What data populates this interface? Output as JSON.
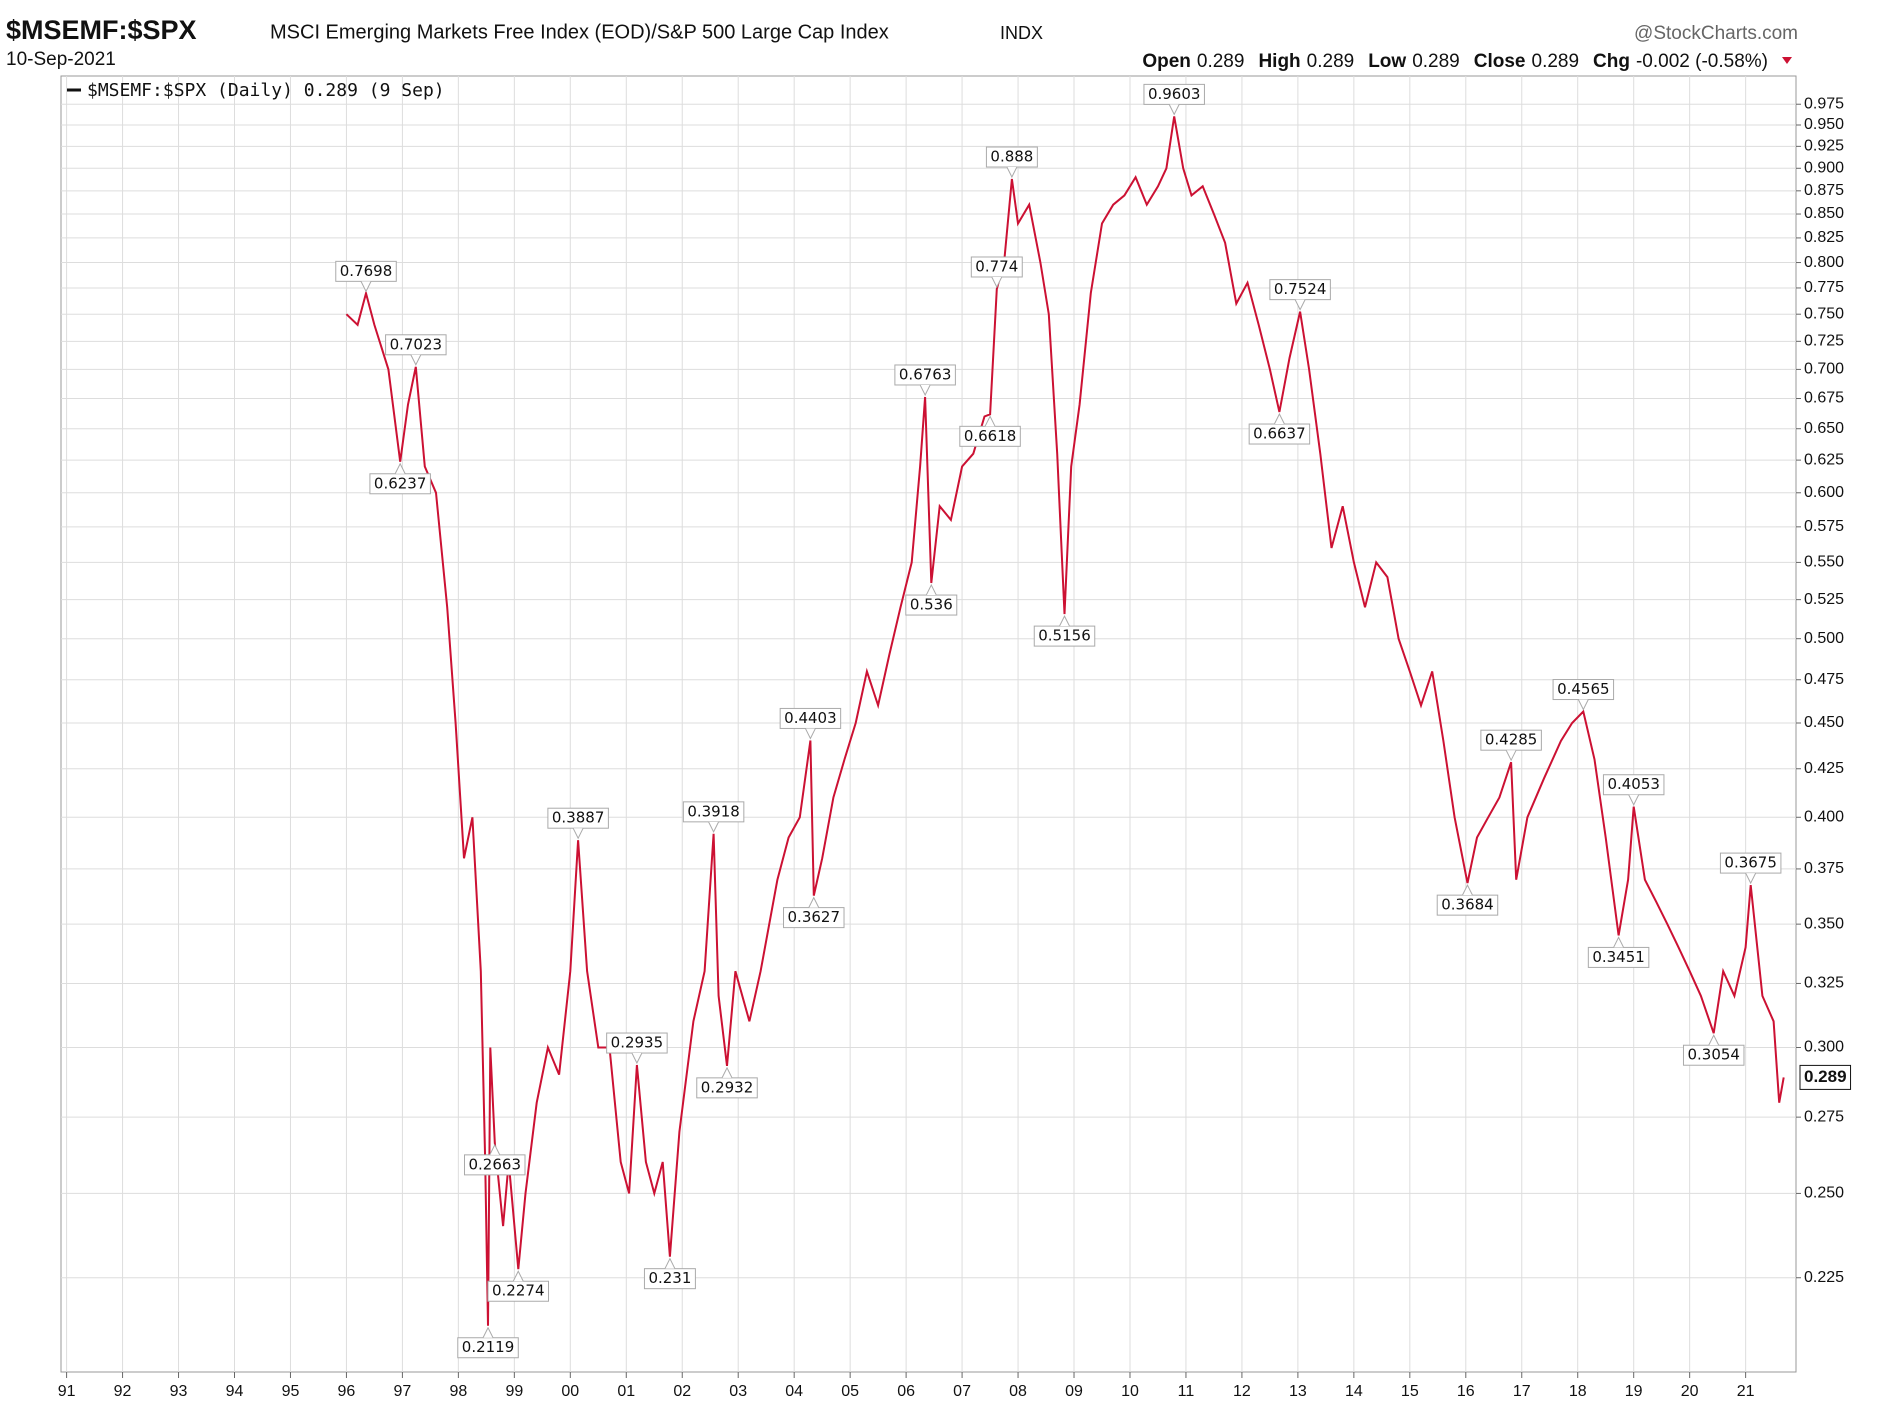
{
  "chart_data": {
    "type": "line",
    "symbol": "$MSEMF:$SPX",
    "title": "MSCI Emerging Markets Free Index (EOD)/S&P 500 Large Cap Index",
    "exchange": "INDX",
    "date": "10-Sep-2021",
    "source": "@StockCharts.com",
    "quote": [
      {
        "label": "Open",
        "value": 0.289
      },
      {
        "label": "High",
        "value": 0.289
      },
      {
        "label": "Low",
        "value": 0.289
      },
      {
        "label": "Close",
        "value": 0.289
      }
    ],
    "change_label": "Chg",
    "change": "-0.002 (-0.58%)",
    "legend": "$MSEMF:$SPX (Daily) 0.289 (9 Sep)",
    "log_scale": true,
    "grid": true,
    "xlim": [
      1990.9,
      2021.9
    ],
    "ylim": [
      0.2,
      1.01
    ],
    "xticks": [
      {
        "value": 1991,
        "label": "91"
      },
      {
        "value": 1992,
        "label": "92"
      },
      {
        "value": 1993,
        "label": "93"
      },
      {
        "value": 1994,
        "label": "94"
      },
      {
        "value": 1995,
        "label": "95"
      },
      {
        "value": 1996,
        "label": "96"
      },
      {
        "value": 1997,
        "label": "97"
      },
      {
        "value": 1998,
        "label": "98"
      },
      {
        "value": 1999,
        "label": "99"
      },
      {
        "value": 2000,
        "label": "00"
      },
      {
        "value": 2001,
        "label": "01"
      },
      {
        "value": 2002,
        "label": "02"
      },
      {
        "value": 2003,
        "label": "03"
      },
      {
        "value": 2004,
        "label": "04"
      },
      {
        "value": 2005,
        "label": "05"
      },
      {
        "value": 2006,
        "label": "06"
      },
      {
        "value": 2007,
        "label": "07"
      },
      {
        "value": 2008,
        "label": "08"
      },
      {
        "value": 2009,
        "label": "09"
      },
      {
        "value": 2010,
        "label": "10"
      },
      {
        "value": 2011,
        "label": "11"
      },
      {
        "value": 2012,
        "label": "12"
      },
      {
        "value": 2013,
        "label": "13"
      },
      {
        "value": 2014,
        "label": "14"
      },
      {
        "value": 2015,
        "label": "15"
      },
      {
        "value": 2016,
        "label": "16"
      },
      {
        "value": 2017,
        "label": "17"
      },
      {
        "value": 2018,
        "label": "18"
      },
      {
        "value": 2019,
        "label": "19"
      },
      {
        "value": 2020,
        "label": "20"
      },
      {
        "value": 2021,
        "label": "21"
      }
    ],
    "yticks": [
      0.225,
      {
        "value": 0.25,
        "label": "0.250"
      },
      0.275,
      {
        "value": 0.3,
        "label": "0.300"
      },
      0.325,
      {
        "value": 0.35,
        "label": "0.350"
      },
      0.375,
      {
        "value": 0.4,
        "label": "0.400"
      },
      0.425,
      {
        "value": 0.45,
        "label": "0.450"
      },
      0.475,
      {
        "value": 0.5,
        "label": "0.500"
      },
      0.525,
      {
        "value": 0.55,
        "label": "0.550"
      },
      0.575,
      {
        "value": 0.6,
        "label": "0.600"
      },
      0.625,
      {
        "value": 0.65,
        "label": "0.650"
      },
      0.675,
      {
        "value": 0.7,
        "label": "0.700"
      },
      0.725,
      {
        "value": 0.75,
        "label": "0.750"
      },
      0.775,
      {
        "value": 0.8,
        "label": "0.800"
      },
      0.825,
      {
        "value": 0.85,
        "label": "0.850"
      },
      0.875,
      {
        "value": 0.9,
        "label": "0.900"
      },
      0.925,
      {
        "value": 0.95,
        "label": "0.950"
      },
      0.975
    ],
    "x": [
      1996.0,
      1996.2,
      1996.35,
      1996.5,
      1996.75,
      1996.96,
      1997.1,
      1997.24,
      1997.4,
      1997.6,
      1997.8,
      1997.95,
      1998.1,
      1998.25,
      1998.4,
      1998.48,
      1998.53,
      1998.57,
      1998.65,
      1998.8,
      1998.9,
      1999.07,
      1999.2,
      1999.4,
      1999.6,
      1999.8,
      2000.0,
      2000.14,
      2000.3,
      2000.5,
      2000.7,
      2000.9,
      2001.05,
      2001.19,
      2001.35,
      2001.5,
      2001.65,
      2001.78,
      2001.95,
      2002.2,
      2002.4,
      2002.56,
      2002.65,
      2002.8,
      2002.95,
      2003.2,
      2003.4,
      2003.7,
      2003.9,
      2004.1,
      2004.29,
      2004.35,
      2004.5,
      2004.7,
      2004.9,
      2005.1,
      2005.3,
      2005.5,
      2005.7,
      2005.9,
      2006.1,
      2006.25,
      2006.34,
      2006.45,
      2006.6,
      2006.8,
      2007.0,
      2007.2,
      2007.4,
      2007.5,
      2007.62,
      2007.75,
      2007.89,
      2008.0,
      2008.2,
      2008.4,
      2008.55,
      2008.7,
      2008.83,
      2008.95,
      2009.1,
      2009.3,
      2009.5,
      2009.7,
      2009.9,
      2010.1,
      2010.3,
      2010.5,
      2010.65,
      2010.79,
      2010.95,
      2011.1,
      2011.3,
      2011.5,
      2011.7,
      2011.9,
      2012.1,
      2012.3,
      2012.5,
      2012.67,
      2012.85,
      2013.04,
      2013.2,
      2013.4,
      2013.6,
      2013.8,
      2014.0,
      2014.2,
      2014.4,
      2014.6,
      2014.8,
      2015.0,
      2015.2,
      2015.4,
      2015.6,
      2015.8,
      2016.03,
      2016.2,
      2016.4,
      2016.6,
      2016.81,
      2016.9,
      2017.1,
      2017.4,
      2017.7,
      2017.9,
      2018.1,
      2018.3,
      2018.5,
      2018.73,
      2018.9,
      2019.0,
      2019.2,
      2019.4,
      2019.6,
      2019.8,
      2020.0,
      2020.2,
      2020.43,
      2020.6,
      2020.8,
      2021.0,
      2021.09,
      2021.3,
      2021.5,
      2021.6,
      2021.68
    ],
    "series": [
      {
        "name": "$MSEMF:$SPX",
        "color": "#cc1133",
        "values": [
          0.75,
          0.74,
          0.7698,
          0.74,
          0.7,
          0.6237,
          0.67,
          0.7023,
          0.62,
          0.6,
          0.52,
          0.45,
          0.38,
          0.4,
          0.33,
          0.26,
          0.2119,
          0.3,
          0.2663,
          0.24,
          0.26,
          0.2274,
          0.25,
          0.28,
          0.3,
          0.29,
          0.33,
          0.3887,
          0.33,
          0.3,
          0.3,
          0.26,
          0.25,
          0.2935,
          0.26,
          0.25,
          0.26,
          0.231,
          0.27,
          0.31,
          0.33,
          0.3918,
          0.32,
          0.2932,
          0.33,
          0.31,
          0.33,
          0.37,
          0.39,
          0.4,
          0.4403,
          0.3627,
          0.38,
          0.41,
          0.43,
          0.45,
          0.48,
          0.46,
          0.49,
          0.52,
          0.55,
          0.62,
          0.6763,
          0.536,
          0.59,
          0.58,
          0.62,
          0.63,
          0.66,
          0.6618,
          0.774,
          0.8,
          0.888,
          0.84,
          0.86,
          0.8,
          0.75,
          0.63,
          0.5156,
          0.62,
          0.67,
          0.77,
          0.84,
          0.86,
          0.87,
          0.89,
          0.86,
          0.88,
          0.9,
          0.9603,
          0.9,
          0.87,
          0.88,
          0.85,
          0.82,
          0.76,
          0.78,
          0.74,
          0.7,
          0.6637,
          0.71,
          0.7524,
          0.7,
          0.63,
          0.56,
          0.59,
          0.55,
          0.52,
          0.55,
          0.54,
          0.5,
          0.48,
          0.46,
          0.48,
          0.44,
          0.4,
          0.3684,
          0.39,
          0.4,
          0.41,
          0.4285,
          0.37,
          0.4,
          0.42,
          0.44,
          0.45,
          0.4565,
          0.43,
          0.39,
          0.3451,
          0.37,
          0.4053,
          0.37,
          0.36,
          0.35,
          0.34,
          0.33,
          0.32,
          0.3054,
          0.33,
          0.32,
          0.34,
          0.3675,
          0.32,
          0.31,
          0.28,
          0.289
        ]
      }
    ],
    "annotations": [
      {
        "x": 1996.35,
        "value": 0.7698
      },
      {
        "x": 1996.96,
        "value": 0.6237
      },
      {
        "x": 1997.24,
        "value": 0.7023
      },
      {
        "x": 1998.53,
        "value": 0.2119
      },
      {
        "x": 1998.65,
        "value": 0.2663
      },
      {
        "x": 1999.07,
        "value": 0.2274
      },
      {
        "x": 2000.14,
        "value": 0.3887
      },
      {
        "x": 2001.19,
        "value": 0.2935
      },
      {
        "x": 2001.78,
        "value": 0.231
      },
      {
        "x": 2002.56,
        "value": 0.3918
      },
      {
        "x": 2002.8,
        "value": 0.2932
      },
      {
        "x": 2004.29,
        "value": 0.4403
      },
      {
        "x": 2004.35,
        "value": 0.3627
      },
      {
        "x": 2006.34,
        "value": 0.6763
      },
      {
        "x": 2006.45,
        "value": 0.536
      },
      {
        "x": 2007.5,
        "value": 0.6618
      },
      {
        "x": 2007.62,
        "value": 0.774
      },
      {
        "x": 2007.89,
        "value": 0.888
      },
      {
        "x": 2008.83,
        "value": 0.5156
      },
      {
        "x": 2010.79,
        "value": 0.9603
      },
      {
        "x": 2012.67,
        "value": 0.6637
      },
      {
        "x": 2013.04,
        "value": 0.7524
      },
      {
        "x": 2016.03,
        "value": 0.3684
      },
      {
        "x": 2016.81,
        "value": 0.4285
      },
      {
        "x": 2018.1,
        "value": 0.4565
      },
      {
        "x": 2018.73,
        "value": 0.3451
      },
      {
        "x": 2019.0,
        "value": 0.4053
      },
      {
        "x": 2020.43,
        "value": 0.3054
      },
      {
        "x": 2021.09,
        "value": 0.3675
      }
    ]
  }
}
